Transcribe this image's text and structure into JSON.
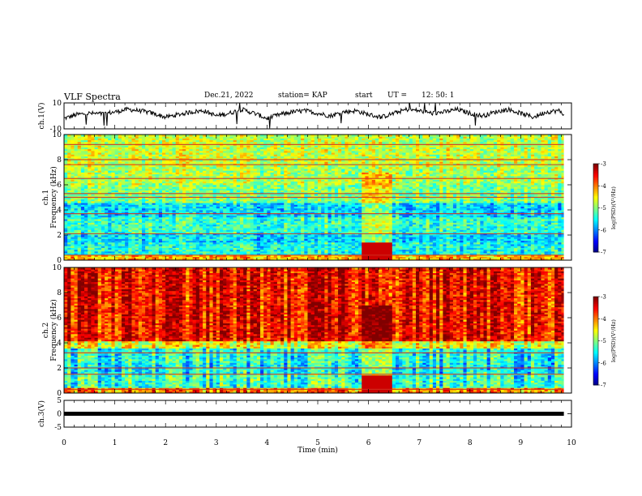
{
  "header": {
    "title": "VLF Spectra",
    "date": "Dec.21, 2022",
    "station": "station= KAP",
    "start_label": "start",
    "ut_label": "UT  =",
    "start_time": "12: 50: 1"
  },
  "chart_data": [
    {
      "type": "line",
      "name": "ch1-waveform",
      "ylabel": "ch.1(V)",
      "ylim": [
        -10,
        10
      ],
      "yticks": [
        "10",
        "-10"
      ],
      "xlim": [
        0,
        10
      ],
      "x": [
        0,
        0.25,
        0.5,
        0.75,
        1,
        1.25,
        1.5,
        1.75,
        2,
        2.25,
        2.5,
        2.75,
        3,
        3.25,
        3.5,
        3.75,
        4,
        4.25,
        4.5,
        4.75,
        5,
        5.25,
        5.5,
        5.75,
        6,
        6.25,
        6.5,
        6.75,
        7,
        7.25,
        7.5,
        7.75,
        8,
        8.25,
        8.5,
        8.75,
        9,
        9.25,
        9.5,
        9.75,
        9.85
      ],
      "y": [
        -2,
        1,
        2,
        1.5,
        3,
        5,
        4,
        2,
        -1,
        1,
        3,
        4,
        0,
        2,
        5,
        2,
        -2,
        1,
        3,
        4,
        2,
        0,
        3,
        4,
        1,
        -1,
        2,
        5,
        4,
        2,
        3,
        5,
        2,
        0,
        3,
        5,
        2,
        -1,
        3,
        4,
        1
      ]
    },
    {
      "type": "heatmap",
      "name": "ch1-spectrogram",
      "ylabel": "ch.1\nFrequency (kHz)",
      "yticks": [
        "0",
        "2",
        "4",
        "6",
        "8",
        "10"
      ],
      "ylim": [
        0,
        10
      ],
      "xlim": [
        0,
        10
      ],
      "colorbar": {
        "label": "log(PSD)(V²/Hz)",
        "ticks": [
          "-3",
          "-4",
          "-5",
          "-6",
          "-7"
        ],
        "range": [
          -7,
          -3
        ]
      },
      "bands": [
        {
          "f": [
            0,
            0.4
          ],
          "level": -4.2
        },
        {
          "f": [
            0.4,
            1.4
          ],
          "level": -5.4
        },
        {
          "f": [
            1.4,
            2.2
          ],
          "level": -5.6
        },
        {
          "f": [
            2.2,
            3.4
          ],
          "level": -5.3
        },
        {
          "f": [
            3.4,
            4.6
          ],
          "level": -5.6
        },
        {
          "f": [
            4.6,
            6.0
          ],
          "level": -5.0
        },
        {
          "f": [
            6.0,
            7.4
          ],
          "level": -4.8
        },
        {
          "f": [
            7.4,
            10
          ],
          "level": -4.7
        }
      ],
      "lines_khz": [
        0.4,
        2.1,
        3.7,
        5.0,
        5.3,
        6.5,
        7.6,
        8.0,
        9.2
      ],
      "burst_min": [
        5.85,
        6.45
      ]
    },
    {
      "type": "heatmap",
      "name": "ch2-spectrogram",
      "ylabel": "ch.2\nFrequency (kHz)",
      "yticks": [
        "0",
        "2",
        "4",
        "6",
        "8",
        "10"
      ],
      "ylim": [
        0,
        10
      ],
      "xlim": [
        0,
        10
      ],
      "colorbar": {
        "label": "log(PSD)(V²/Hz)",
        "ticks": [
          "-3",
          "-4",
          "-5",
          "-6",
          "-7"
        ],
        "range": [
          -7,
          -3
        ]
      },
      "bands": [
        {
          "f": [
            0,
            0.4
          ],
          "level": -4.0
        },
        {
          "f": [
            0.4,
            1.6
          ],
          "level": -5.3
        },
        {
          "f": [
            1.6,
            2.4
          ],
          "level": -5.5
        },
        {
          "f": [
            2.4,
            3.6
          ],
          "level": -5.4
        },
        {
          "f": [
            3.6,
            4.2
          ],
          "level": -4.6
        },
        {
          "f": [
            4.2,
            10
          ],
          "level": -3.5
        }
      ],
      "lines_khz": [
        0.3,
        1.5,
        2.0,
        3.2
      ],
      "burst_min": [
        5.85,
        6.45
      ]
    },
    {
      "type": "line",
      "name": "ch3-waveform",
      "ylabel": "ch.3(V)",
      "ylim": [
        -5,
        5
      ],
      "yticks": [
        "5",
        "0",
        "-5"
      ],
      "xlim": [
        0,
        10
      ],
      "xlabel": "Time (min)",
      "xticks": [
        "0",
        "1",
        "2",
        "3",
        "4",
        "5",
        "6",
        "7",
        "8",
        "9",
        "10"
      ],
      "x": [
        0,
        9.85
      ],
      "y": [
        0,
        0
      ]
    }
  ],
  "colors": {
    "axis": "#000000",
    "trace": "#000000",
    "background": "#ffffff"
  }
}
